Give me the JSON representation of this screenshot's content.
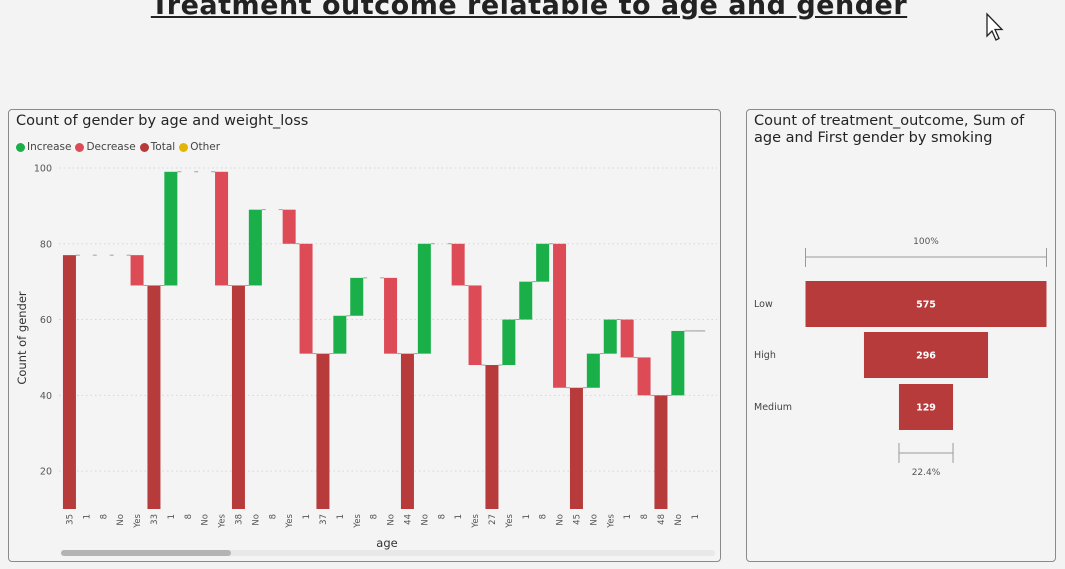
{
  "page": {
    "title": "Treatment outcome relatable to age and gender"
  },
  "colors": {
    "increase": "#1aaf48",
    "decrease": "#dd4b57",
    "total": "#b73b3b",
    "other": "#e3b505",
    "funnel": "#b73b3b"
  },
  "icons": {
    "cursor": "pointer-arrow-icon"
  },
  "chart_data": [
    {
      "type": "waterfall",
      "title": "Count of gender by age and weight_loss",
      "xlabel": "age",
      "ylabel": "Count of gender",
      "ylim": [
        10,
        100
      ],
      "yticks": [
        20,
        40,
        60,
        80,
        100
      ],
      "grid": true,
      "legend": {
        "placement": "top-left",
        "entries": [
          {
            "label": "Increase",
            "kind": "increase"
          },
          {
            "label": "Decrease",
            "kind": "decrease"
          },
          {
            "label": "Total",
            "kind": "total"
          },
          {
            "label": "Other",
            "kind": "other"
          }
        ]
      },
      "bars": [
        {
          "label": "35",
          "start": 10,
          "end": 77,
          "kind": "total"
        },
        {
          "label": "1",
          "start": 77,
          "end": 77,
          "kind": "increase"
        },
        {
          "label": "8",
          "start": 77,
          "end": 77,
          "kind": "increase"
        },
        {
          "label": "No",
          "start": 77,
          "end": 77,
          "kind": "increase"
        },
        {
          "label": "Yes",
          "start": 77,
          "end": 69,
          "kind": "decrease"
        },
        {
          "label": "33",
          "start": 10,
          "end": 69,
          "kind": "total"
        },
        {
          "label": "1",
          "start": 69,
          "end": 99,
          "kind": "increase"
        },
        {
          "label": "8",
          "start": 99,
          "end": 99,
          "kind": "increase"
        },
        {
          "label": "No",
          "start": 99,
          "end": 99,
          "kind": "increase"
        },
        {
          "label": "Yes",
          "start": 99,
          "end": 69,
          "kind": "decrease"
        },
        {
          "label": "38",
          "start": 10,
          "end": 69,
          "kind": "total"
        },
        {
          "label": "No",
          "start": 69,
          "end": 89,
          "kind": "increase"
        },
        {
          "label": "8",
          "start": 89,
          "end": 89,
          "kind": "increase"
        },
        {
          "label": "Yes",
          "start": 89,
          "end": 80,
          "kind": "decrease"
        },
        {
          "label": "1",
          "start": 80,
          "end": 51,
          "kind": "decrease"
        },
        {
          "label": "37",
          "start": 10,
          "end": 51,
          "kind": "total"
        },
        {
          "label": "1",
          "start": 51,
          "end": 61,
          "kind": "increase"
        },
        {
          "label": "Yes",
          "start": 61,
          "end": 71,
          "kind": "increase"
        },
        {
          "label": "8",
          "start": 71,
          "end": 71,
          "kind": "increase"
        },
        {
          "label": "No",
          "start": 71,
          "end": 51,
          "kind": "decrease"
        },
        {
          "label": "44",
          "start": 10,
          "end": 51,
          "kind": "total"
        },
        {
          "label": "No",
          "start": 51,
          "end": 80,
          "kind": "increase"
        },
        {
          "label": "8",
          "start": 80,
          "end": 80,
          "kind": "increase"
        },
        {
          "label": "1",
          "start": 80,
          "end": 69,
          "kind": "decrease"
        },
        {
          "label": "Yes",
          "start": 69,
          "end": 48,
          "kind": "decrease"
        },
        {
          "label": "27",
          "start": 10,
          "end": 48,
          "kind": "total"
        },
        {
          "label": "Yes",
          "start": 48,
          "end": 60,
          "kind": "increase"
        },
        {
          "label": "1",
          "start": 60,
          "end": 70,
          "kind": "increase"
        },
        {
          "label": "8",
          "start": 70,
          "end": 80,
          "kind": "increase"
        },
        {
          "label": "No",
          "start": 80,
          "end": 42,
          "kind": "decrease"
        },
        {
          "label": "45",
          "start": 10,
          "end": 42,
          "kind": "total"
        },
        {
          "label": "No",
          "start": 42,
          "end": 51,
          "kind": "increase"
        },
        {
          "label": "Yes",
          "start": 51,
          "end": 60,
          "kind": "increase"
        },
        {
          "label": "1",
          "start": 60,
          "end": 50,
          "kind": "decrease"
        },
        {
          "label": "8",
          "start": 50,
          "end": 40,
          "kind": "decrease"
        },
        {
          "label": "48",
          "start": 10,
          "end": 40,
          "kind": "total"
        },
        {
          "label": "No",
          "start": 40,
          "end": 57,
          "kind": "increase"
        },
        {
          "label": "1",
          "start": 57,
          "end": 57,
          "kind": "increase"
        }
      ]
    },
    {
      "type": "funnel",
      "title": "Count of treatment_outcome, Sum of age and First gender by smoking",
      "top_percent": "100%",
      "bottom_percent": "22.4%",
      "stages": [
        {
          "label": "Low",
          "value": 575
        },
        {
          "label": "High",
          "value": 296
        },
        {
          "label": "Medium",
          "value": 129
        }
      ]
    }
  ]
}
